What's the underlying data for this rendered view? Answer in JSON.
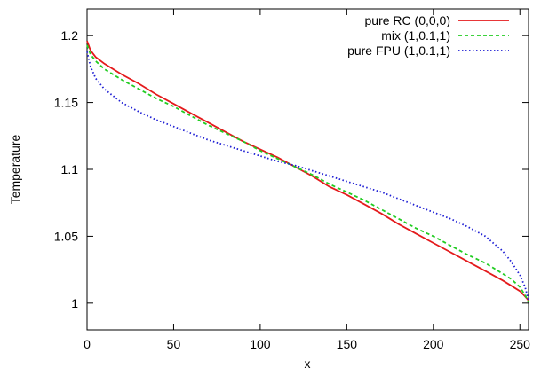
{
  "chart_data": {
    "type": "line",
    "xlabel": "x",
    "ylabel": "Temperature",
    "xlim": [
      0,
      255
    ],
    "ylim": [
      0.98,
      1.22
    ],
    "xticks": [
      0,
      50,
      100,
      150,
      200,
      250
    ],
    "yticks": [
      1,
      1.05,
      1.1,
      1.15,
      1.2
    ],
    "xtick_labels": [
      "0",
      "50",
      "100",
      "150",
      "200",
      "250"
    ],
    "ytick_labels": [
      "1",
      "1.05",
      "1.1",
      "1.15",
      "1.2"
    ],
    "grid": false,
    "legend_position": "top-right",
    "series": [
      {
        "name": "pure RC (0,0,0)",
        "color": "#e41a1c",
        "style": "solid",
        "x": [
          0,
          2,
          5,
          10,
          20,
          30,
          40,
          50,
          60,
          70,
          80,
          90,
          100,
          110,
          120,
          130,
          140,
          150,
          160,
          170,
          180,
          190,
          200,
          210,
          220,
          230,
          240,
          245,
          250,
          253,
          255
        ],
        "y": [
          1.196,
          1.189,
          1.184,
          1.179,
          1.171,
          1.164,
          1.156,
          1.149,
          1.142,
          1.135,
          1.128,
          1.121,
          1.115,
          1.109,
          1.102,
          1.095,
          1.087,
          1.081,
          1.074,
          1.067,
          1.059,
          1.052,
          1.045,
          1.038,
          1.031,
          1.024,
          1.017,
          1.013,
          1.009,
          1.005,
          1.002
        ]
      },
      {
        "name": "mix (1,0.1,1)",
        "color": "#22cc22",
        "style": "dashed",
        "x": [
          0,
          2,
          5,
          10,
          20,
          30,
          40,
          50,
          60,
          70,
          80,
          90,
          100,
          110,
          120,
          130,
          140,
          150,
          160,
          170,
          180,
          190,
          200,
          210,
          220,
          230,
          240,
          245,
          250,
          253,
          255
        ],
        "y": [
          1.193,
          1.186,
          1.181,
          1.175,
          1.167,
          1.16,
          1.153,
          1.147,
          1.14,
          1.133,
          1.127,
          1.121,
          1.114,
          1.108,
          1.102,
          1.096,
          1.089,
          1.083,
          1.077,
          1.07,
          1.063,
          1.056,
          1.05,
          1.043,
          1.036,
          1.03,
          1.022,
          1.018,
          1.012,
          1.006,
          1.001
        ]
      },
      {
        "name": "pure FPU (1,0.1,1)",
        "color": "#1f1fd4",
        "style": "dotted",
        "x": [
          0,
          2,
          5,
          10,
          20,
          30,
          40,
          50,
          60,
          70,
          80,
          90,
          100,
          110,
          120,
          130,
          140,
          150,
          160,
          170,
          180,
          190,
          200,
          210,
          220,
          230,
          240,
          245,
          250,
          253,
          255
        ],
        "y": [
          1.188,
          1.177,
          1.168,
          1.16,
          1.15,
          1.143,
          1.137,
          1.132,
          1.127,
          1.122,
          1.118,
          1.114,
          1.11,
          1.106,
          1.103,
          1.099,
          1.095,
          1.091,
          1.087,
          1.083,
          1.078,
          1.073,
          1.068,
          1.063,
          1.057,
          1.05,
          1.039,
          1.031,
          1.021,
          1.012,
          1.002
        ]
      }
    ]
  }
}
